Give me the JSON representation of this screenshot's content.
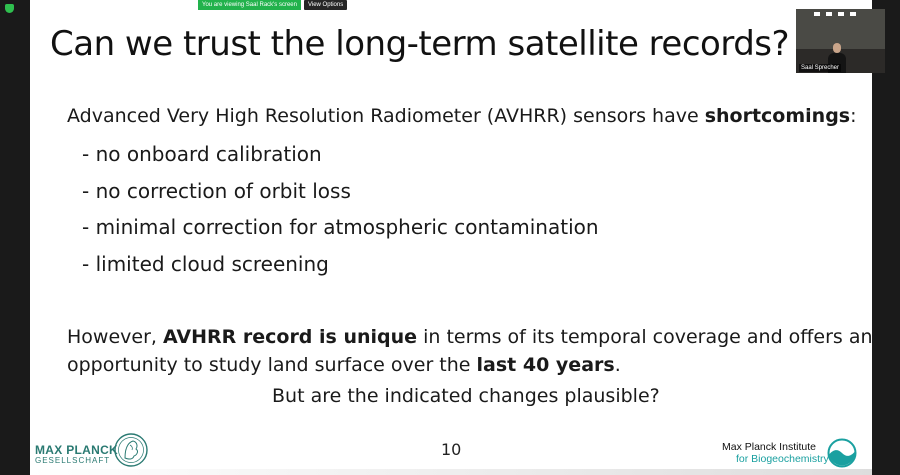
{
  "share_banner": {
    "status_text": "You are viewing Saal Rack's screen",
    "options_label": "View Options",
    "status_color": "#22b24c"
  },
  "slide": {
    "title": "Can we trust the long-term satellite records?",
    "intro_plain": "Advanced Very High Resolution Radiometer (AVHRR) sensors have ",
    "intro_bold": "shortcomings",
    "intro_end": ":",
    "bullets": [
      "- no onboard calibration",
      "- no correction of orbit loss",
      "- minimal correction for atmospheric contamination",
      "- limited cloud screening"
    ],
    "p2_a": "However, ",
    "p2_bold1": "AVHRR record is unique",
    "p2_b": " in terms of its temporal coverage and offers an",
    "p2_c": "opportunity to study land surface over the ",
    "p2_bold2": "last 40 years",
    "p2_d": ".",
    "question": "But are the indicated changes plausible?",
    "page_number": "10"
  },
  "footer": {
    "mpg_line1": "MAX PLANCK",
    "mpg_line2": "GESELLSCHAFT",
    "mpi_line1": "Max Planck Institute",
    "mpi_line2": "for Biogeochemistry",
    "brand_color": "#2a7a72",
    "accent_color": "#1aa0a0"
  },
  "video_tile": {
    "participant_name": "Saal Sprecher"
  },
  "icons": {
    "security": "shield-icon",
    "minerva": "minerva-logo-icon",
    "institute": "mpi-wave-logo-icon"
  }
}
